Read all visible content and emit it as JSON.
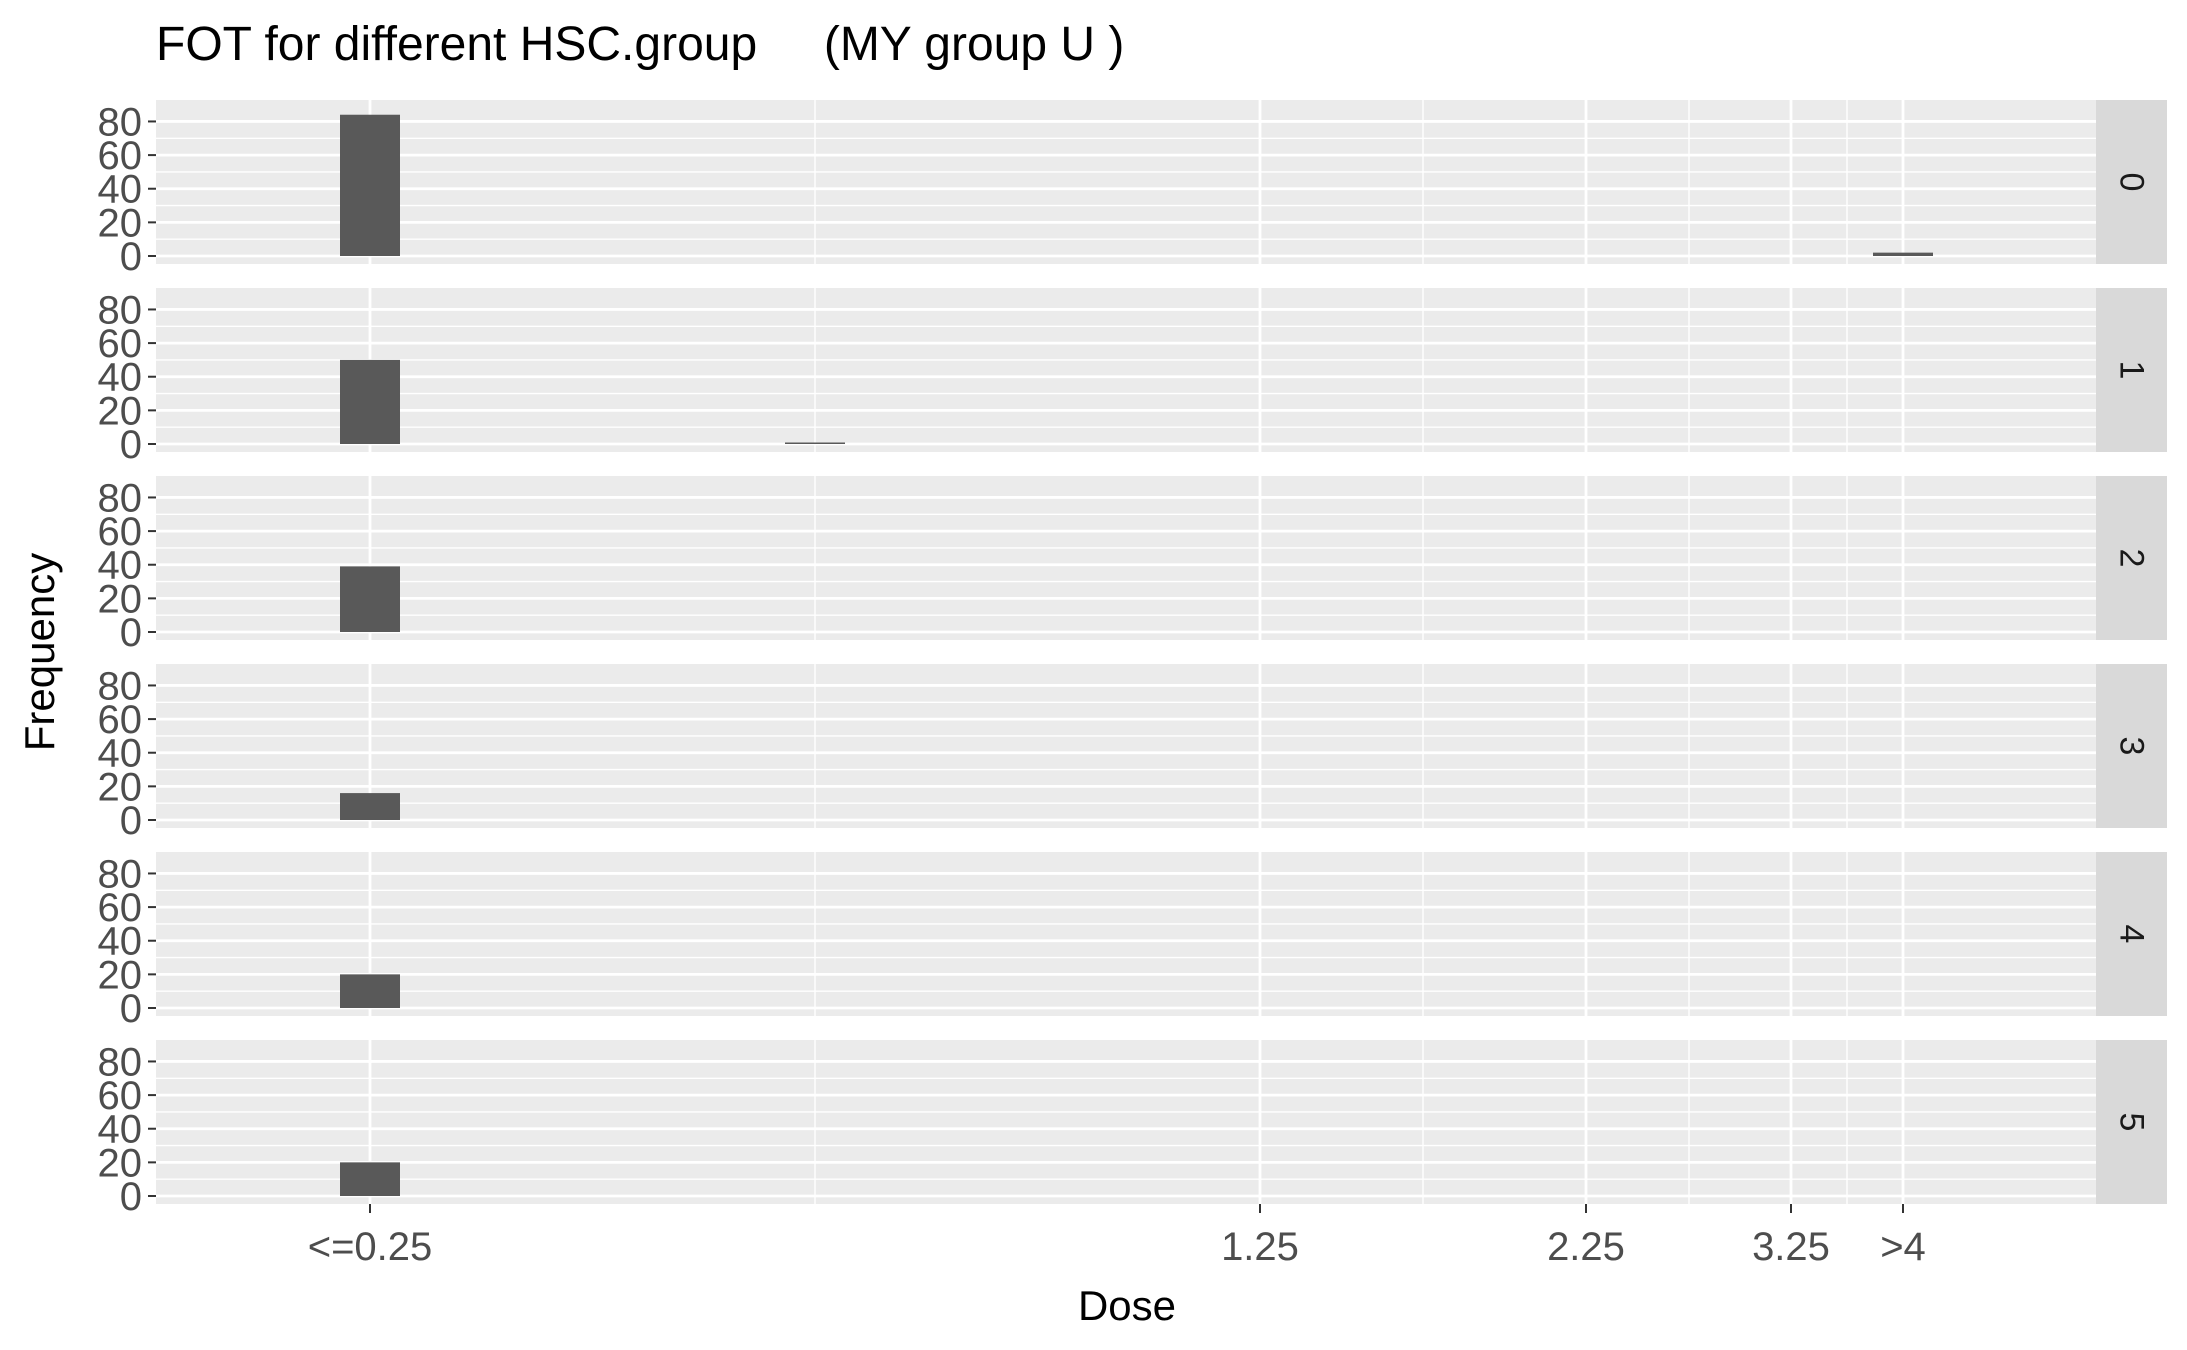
{
  "chart_data": {
    "type": "bar",
    "title": "FOT for different HSC.group     (MY group U )",
    "xlabel": "Dose",
    "ylabel": "Frequency",
    "x_tick_labels": [
      {
        "value": 0.25,
        "label": "<=0.25"
      },
      {
        "value": 1.25,
        "label": "1.25"
      },
      {
        "value": 2.25,
        "label": "2.25"
      },
      {
        "value": 3.25,
        "label": "3.25"
      },
      {
        "value": 4.0,
        "label": ">4"
      }
    ],
    "x_minor_breaks": [
      0.75,
      1.75,
      2.75,
      3.625
    ],
    "y_ticks": [
      0,
      20,
      40,
      60,
      80
    ],
    "ylim": [
      0,
      88
    ],
    "grid": true,
    "facet_variable": "HSC.group",
    "panels": [
      {
        "label": "0",
        "bars": [
          {
            "x": 0.25,
            "value": 84
          },
          {
            "x": 4.0,
            "value": 2
          }
        ]
      },
      {
        "label": "1",
        "bars": [
          {
            "x": 0.25,
            "value": 50
          },
          {
            "x": 0.75,
            "value": 0.5
          }
        ]
      },
      {
        "label": "2",
        "bars": [
          {
            "x": 0.25,
            "value": 39
          }
        ]
      },
      {
        "label": "3",
        "bars": [
          {
            "x": 0.25,
            "value": 16
          }
        ]
      },
      {
        "label": "4",
        "bars": [
          {
            "x": 0.25,
            "value": 20
          }
        ]
      },
      {
        "label": "5",
        "bars": [
          {
            "x": 0.25,
            "value": 20
          }
        ]
      }
    ],
    "colors": {
      "panel_background": "#ebebeb",
      "grid_line": "#ffffff",
      "bar_fill": "#595959",
      "strip_background": "#d9d9d9",
      "tick_text": "#4d4d4d"
    }
  }
}
